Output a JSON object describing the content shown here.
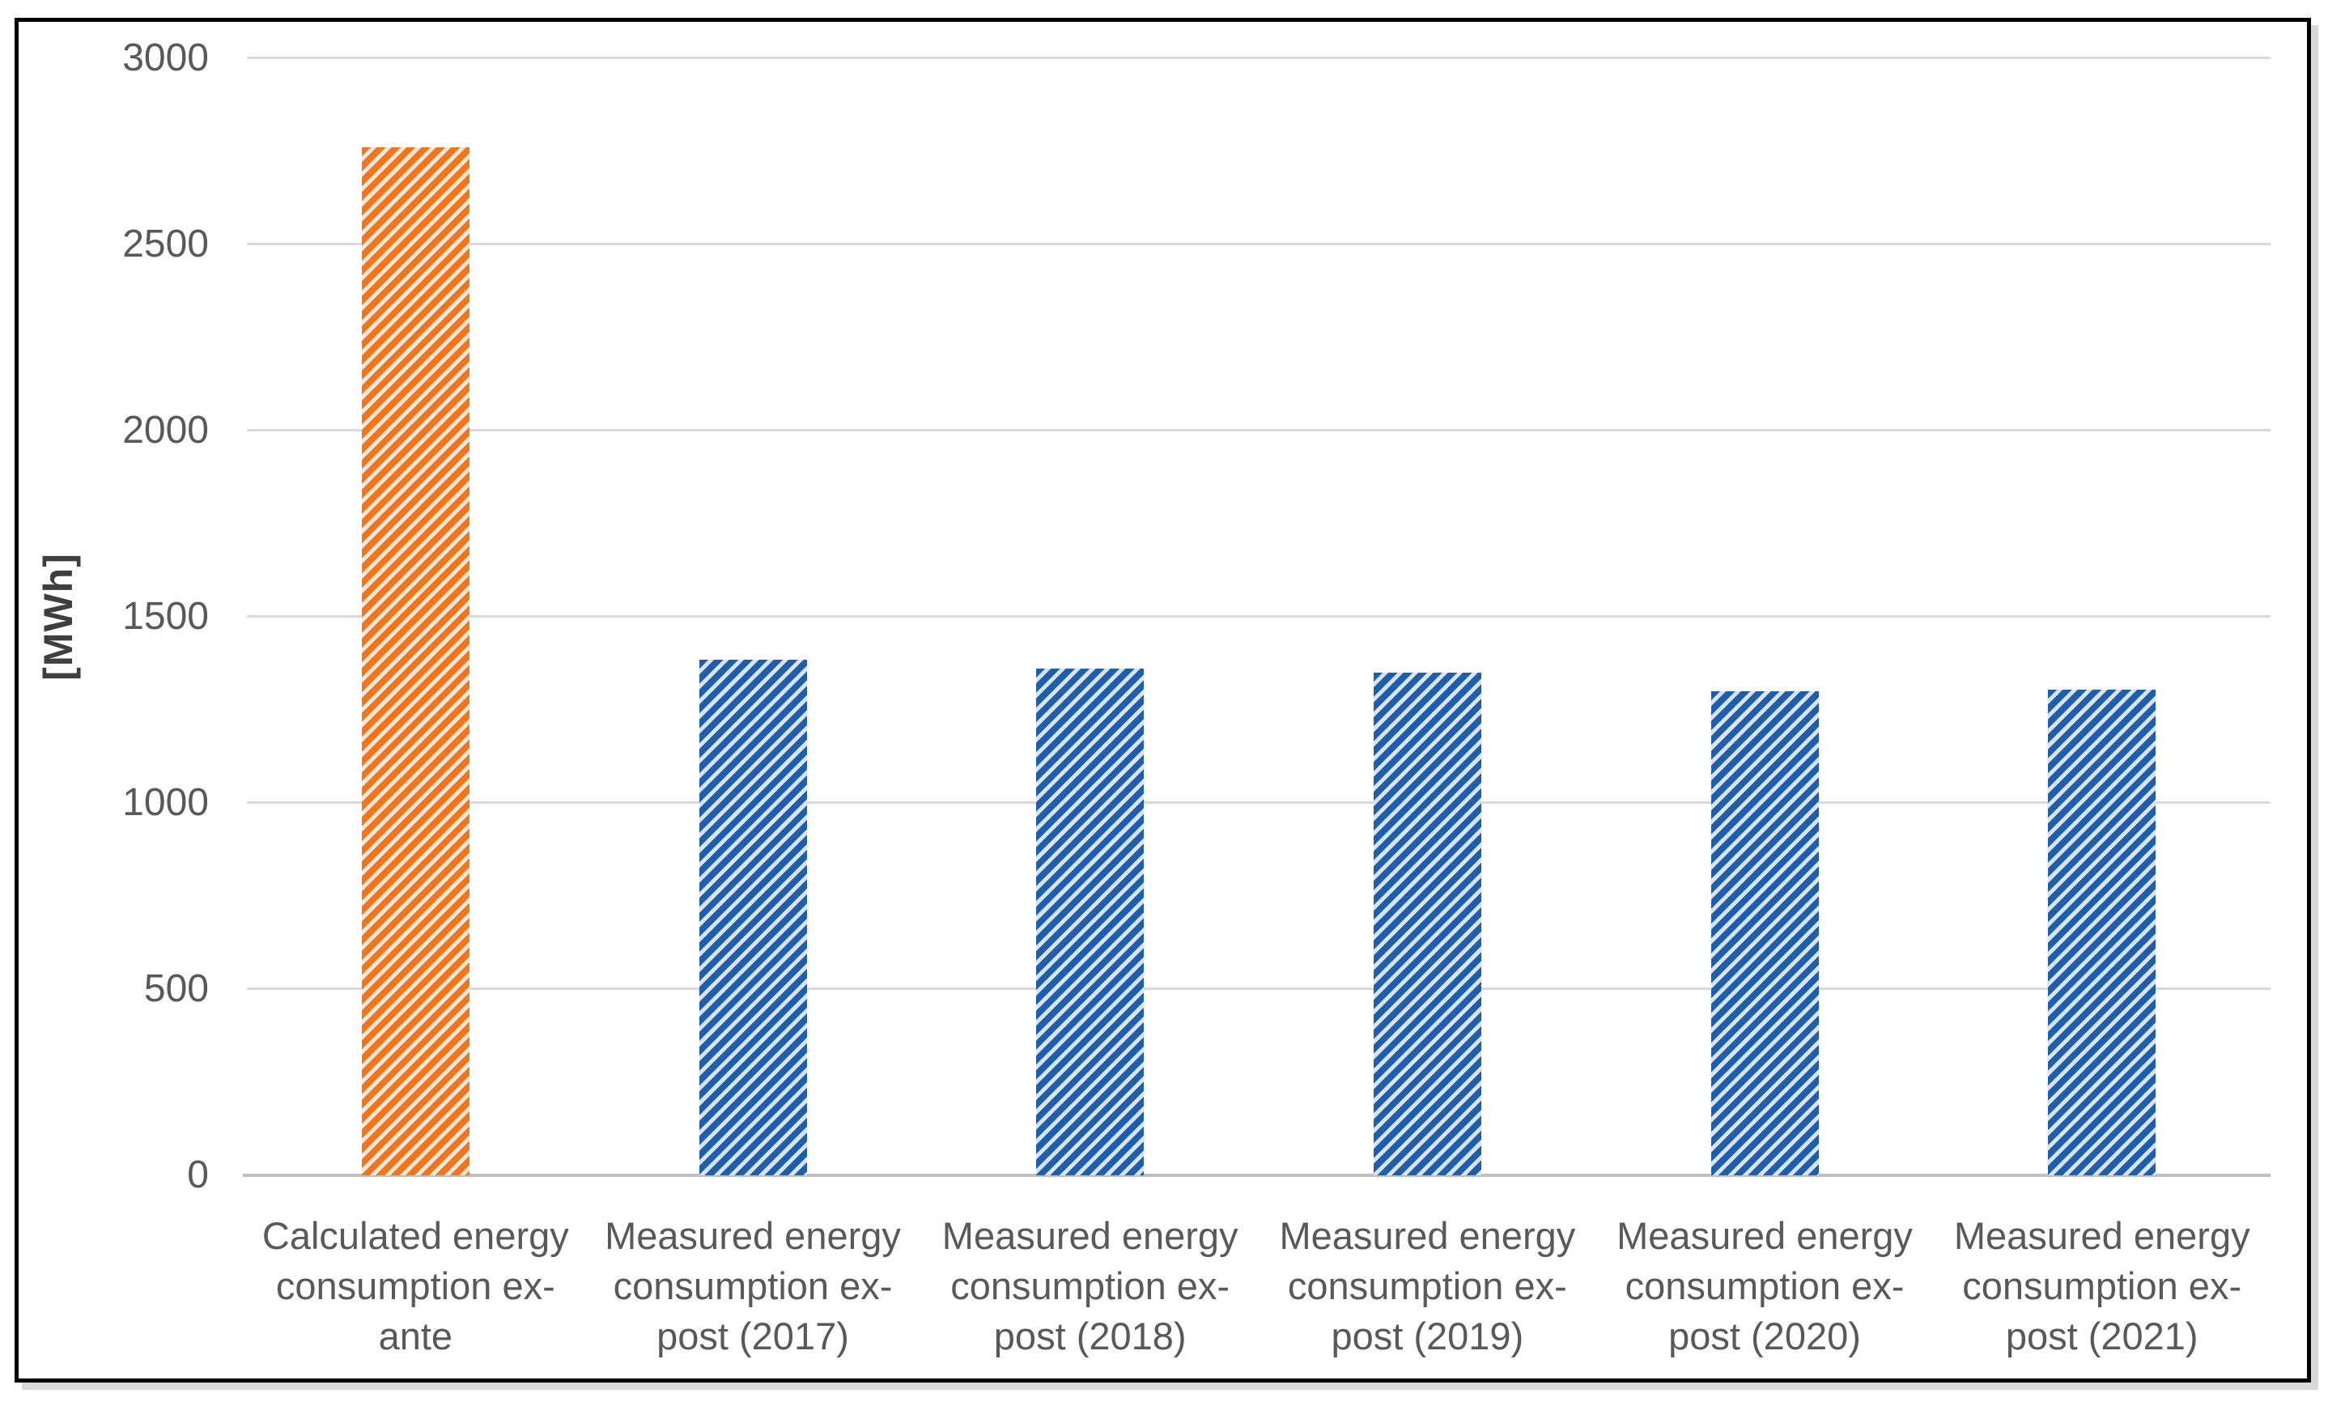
{
  "chart_data": {
    "type": "bar",
    "title": "",
    "ylabel": "[MWh]",
    "xlabel": "",
    "ylim": [
      0,
      3000
    ],
    "yticks": [
      0,
      500,
      1000,
      1500,
      2000,
      2500,
      3000
    ],
    "grid": true,
    "legend": "none",
    "bar_pattern": "diagonal-stripes",
    "categories": [
      "Calculated energy consumption ex-ante",
      "Measured energy consumption ex-post (2017)",
      "Measured energy consumption ex-post (2018)",
      "Measured energy consumption ex-post (2019)",
      "Measured energy consumption ex-post (2020)",
      "Measured energy consumption ex-post (2021)"
    ],
    "category_lines": [
      [
        "Calculated energy",
        "consumption ex-",
        "ante"
      ],
      [
        "Measured energy",
        "consumption ex-",
        "post (2017)"
      ],
      [
        "Measured energy",
        "consumption ex-",
        "post (2018)"
      ],
      [
        "Measured energy",
        "consumption ex-",
        "post (2019)"
      ],
      [
        "Measured energy",
        "consumption ex-",
        "post (2020)"
      ],
      [
        "Measured energy",
        "consumption ex-",
        "post (2021)"
      ]
    ],
    "values": [
      2760,
      1385,
      1360,
      1350,
      1300,
      1305
    ],
    "bar_styles": [
      {
        "stripe": "#f0761e",
        "fill": "#fbe7d8"
      },
      {
        "stripe": "#1f5fa9",
        "fill": "#dae3f2"
      },
      {
        "stripe": "#1f5fa9",
        "fill": "#dae3f2"
      },
      {
        "stripe": "#1f5fa9",
        "fill": "#dae3f2"
      },
      {
        "stripe": "#1f5fa9",
        "fill": "#dae3f2"
      },
      {
        "stripe": "#1f5fa9",
        "fill": "#dae3f2"
      }
    ]
  },
  "style": {
    "gridline_color": "#d9d9d9",
    "axis_line_color": "#bfbfbf",
    "tick_text_color": "#595959",
    "ylabel_color": "#3f3f3f",
    "frame_border_color": "#000000",
    "background_color": "#ffffff"
  }
}
